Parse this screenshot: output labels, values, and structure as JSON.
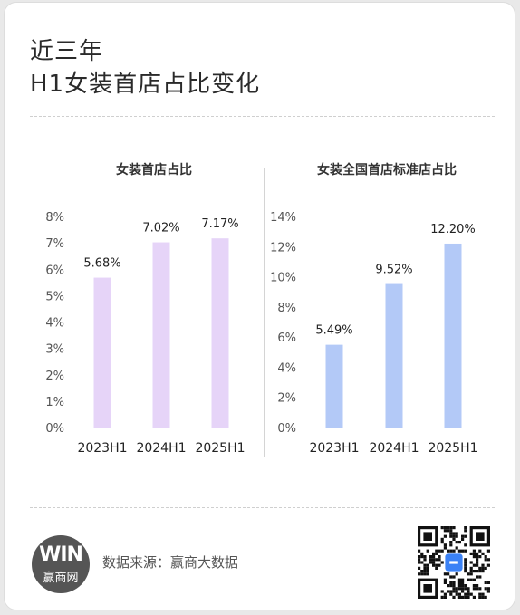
{
  "header": {
    "title_line1": "近三年",
    "title_line2": "H1女装首店占比变化"
  },
  "chart_data": [
    {
      "type": "bar",
      "title": "女装首店占比",
      "categories": [
        "2023H1",
        "2024H1",
        "2025H1"
      ],
      "values": [
        5.68,
        7.02,
        7.17
      ],
      "value_labels": [
        "5.68%",
        "7.02%",
        "7.17%"
      ],
      "yticks": [
        "0%",
        "1%",
        "2%",
        "3%",
        "4%",
        "5%",
        "6%",
        "7%",
        "8%"
      ],
      "ylim": [
        0,
        8
      ],
      "color": "#e6d4f8",
      "grid": false
    },
    {
      "type": "bar",
      "title": "女装全国首店标准店占比",
      "categories": [
        "2023H1",
        "2024H1",
        "2025H1"
      ],
      "values": [
        5.49,
        9.52,
        12.2
      ],
      "value_labels": [
        "5.49%",
        "9.52%",
        "12.20%"
      ],
      "yticks": [
        "0%",
        "2%",
        "4%",
        "6%",
        "8%",
        "10%",
        "12%",
        "14%"
      ],
      "ylim": [
        0,
        14
      ],
      "color": "#b3c9f7",
      "grid": false
    }
  ],
  "footer": {
    "logo_mark": "WIN",
    "logo_text": "赢商网",
    "source": "数据来源：赢商大数据",
    "qr_icon": "qr-code-icon"
  }
}
